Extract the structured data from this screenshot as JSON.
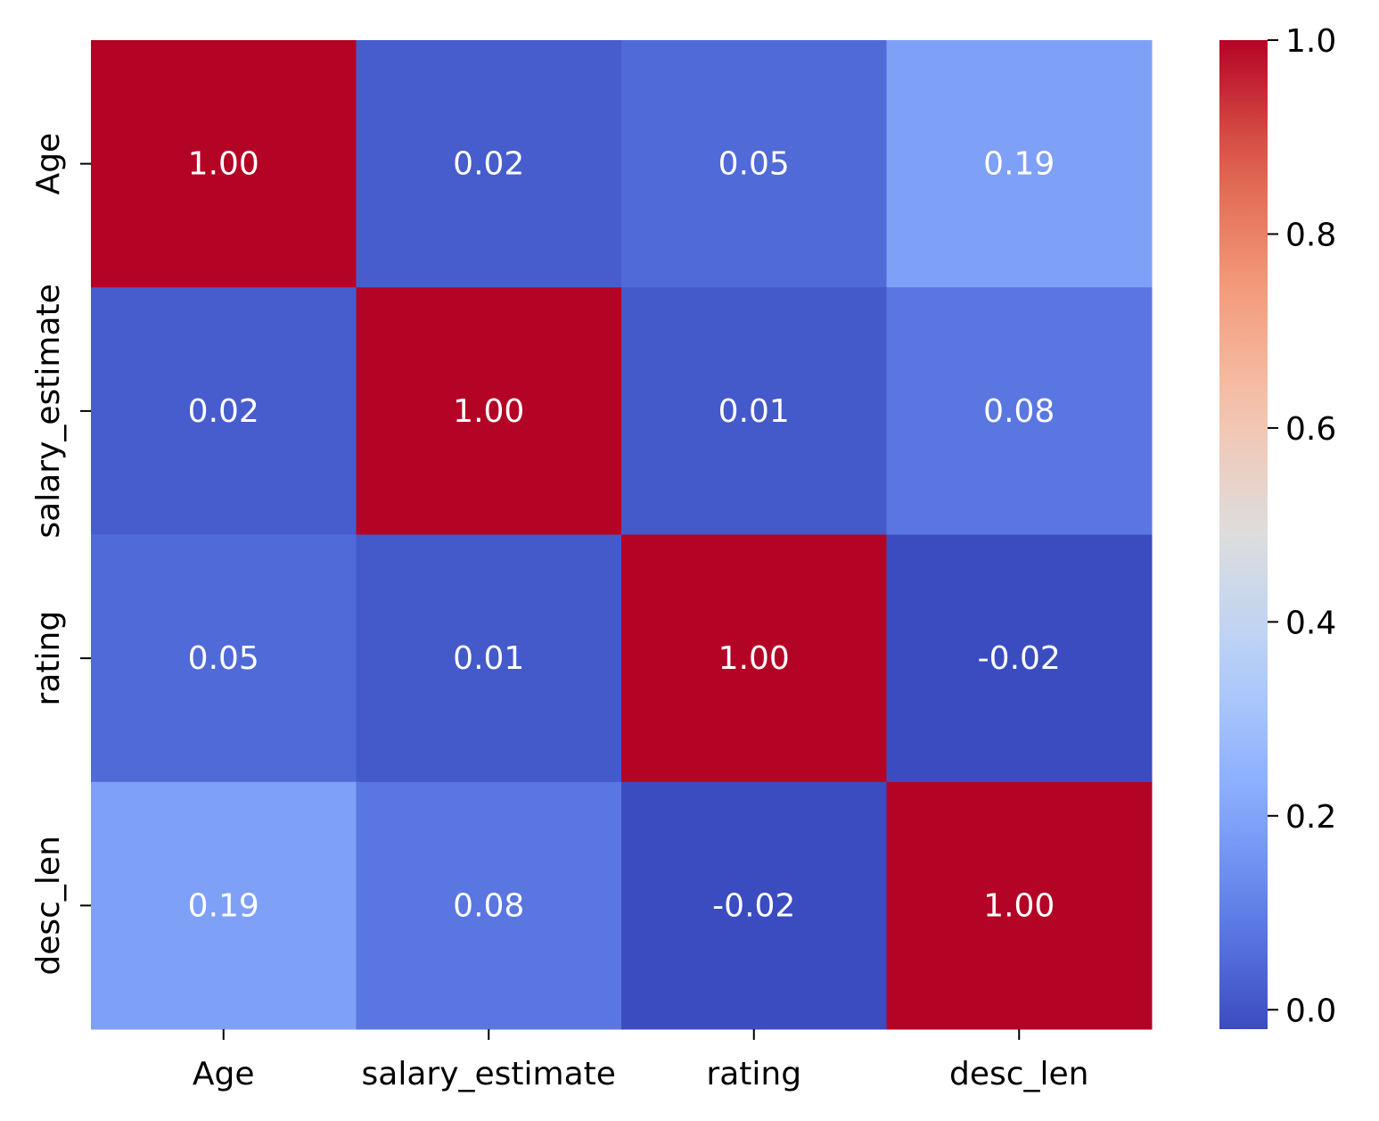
{
  "chart_data": {
    "type": "heatmap",
    "title": "",
    "xlabel": "",
    "ylabel": "",
    "x_labels": [
      "Age",
      "salary_estimate",
      "rating",
      "desc_len"
    ],
    "y_labels": [
      "Age",
      "salary_estimate",
      "rating",
      "desc_len"
    ],
    "values": [
      [
        1.0,
        0.02,
        0.05,
        0.19
      ],
      [
        0.02,
        1.0,
        0.01,
        0.08
      ],
      [
        0.05,
        0.01,
        1.0,
        -0.02
      ],
      [
        0.19,
        0.08,
        -0.02,
        1.0
      ]
    ],
    "cell_labels": [
      [
        "1.00",
        "0.02",
        "0.05",
        "0.19"
      ],
      [
        "0.02",
        "1.00",
        "0.01",
        "0.08"
      ],
      [
        "0.05",
        "0.01",
        "1.00",
        "-0.02"
      ],
      [
        "0.19",
        "0.08",
        "-0.02",
        "1.00"
      ]
    ],
    "colormap": "coolwarm",
    "vmin": -0.02,
    "vmax": 1.0,
    "colorbar": {
      "ticks": [
        0.0,
        0.2,
        0.4,
        0.6,
        0.8,
        1.0
      ],
      "tick_labels": [
        "0.0",
        "0.2",
        "0.4",
        "0.6",
        "0.8",
        "1.0"
      ]
    },
    "grid": false,
    "legend": "colorbar-right"
  }
}
